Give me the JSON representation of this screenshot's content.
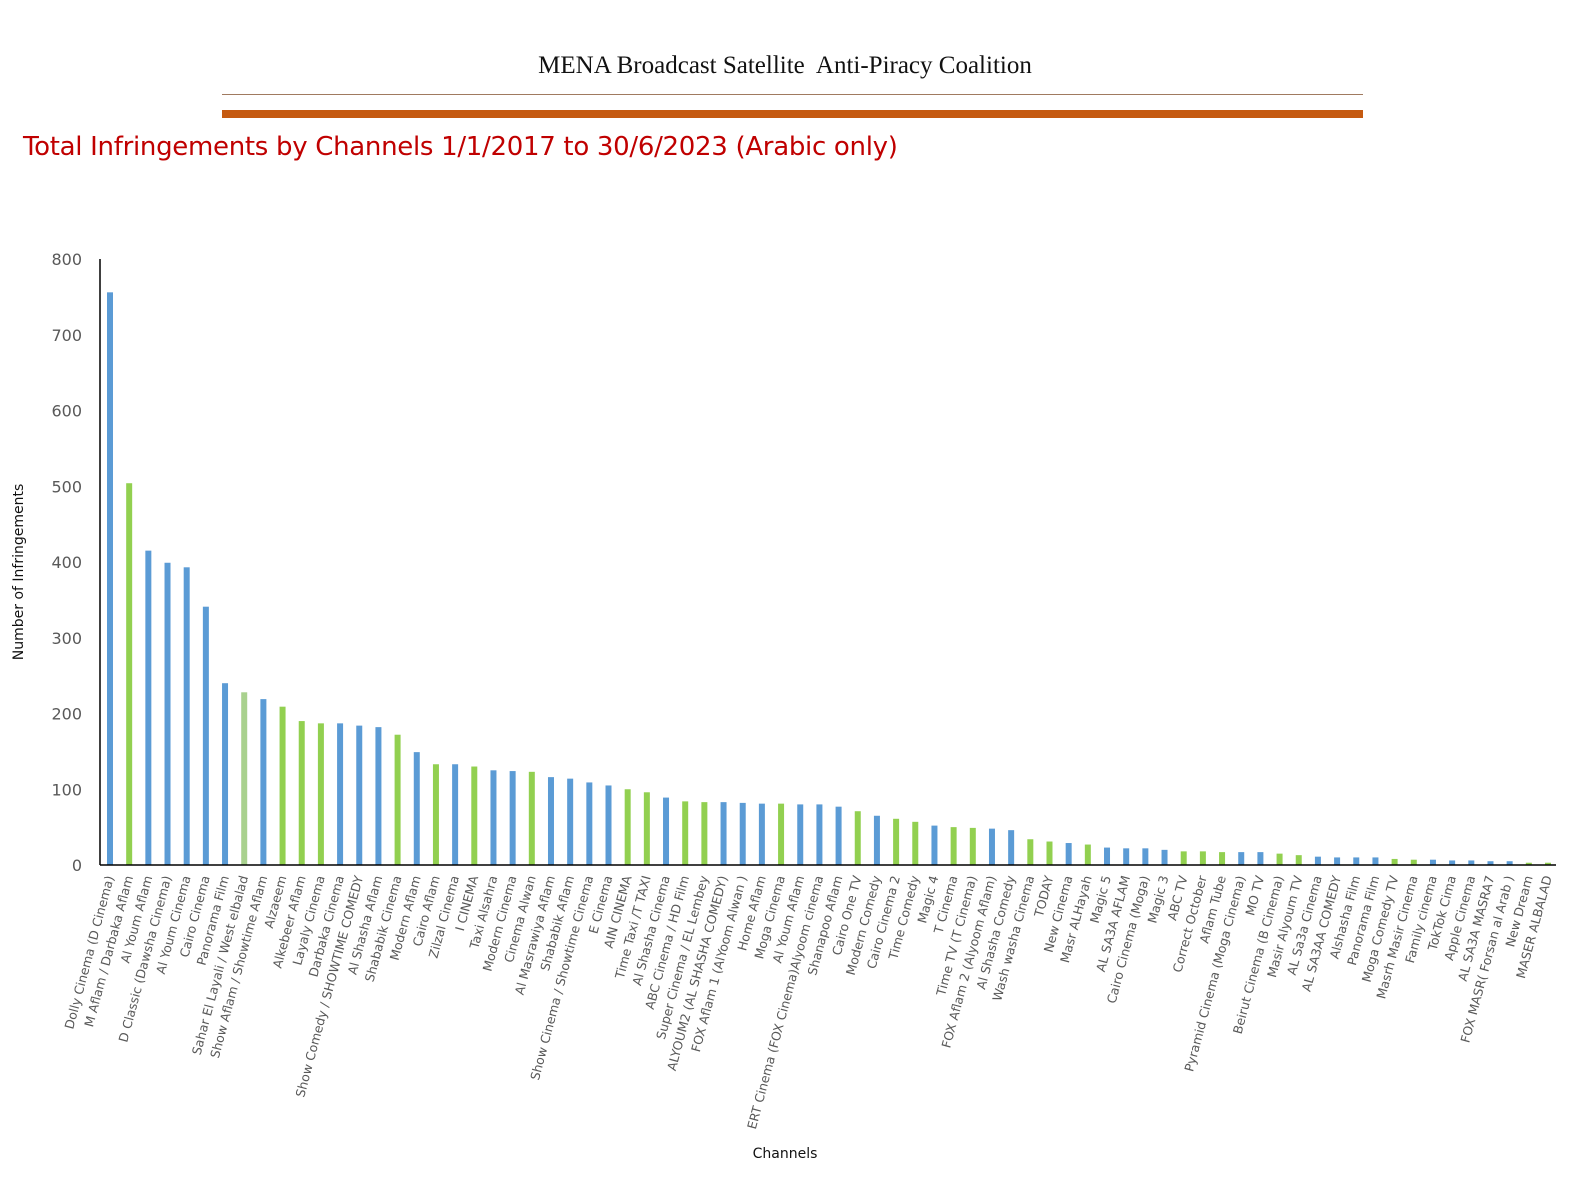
{
  "header": {
    "title": "MENA Broadcast Satellite  Anti-Piracy Coalition"
  },
  "chart_data": {
    "type": "bar",
    "title": "Total Infringements by Channels 1/1/2017 to 30/6/2023 (Arabic only)",
    "xlabel": "Channels",
    "ylabel": "Number of Infringements",
    "ylim": [
      0,
      800
    ],
    "yticks": [
      "0",
      "100",
      "200",
      "300",
      "400",
      "500",
      "600",
      "700",
      "800"
    ],
    "grid": false,
    "legend": "none",
    "palette": {
      "blue": "#5b9bd5",
      "green": "#92d050",
      "lightgreen": "#a9d18e"
    },
    "categories": [
      "Dolly Cinema (D Cinema)",
      "M Aflam  / Darbaka Aflam",
      "Al Youm Aflam",
      "D Classic (Dawsha Cinema)",
      "Al Youm Cinema",
      "Cairo Cinema",
      "Panorama Film",
      "Sahar El Layali / West elbalad",
      "Show Aflam / Showtime Aflam",
      "Alzaeem",
      "Alkebeer Aflam",
      "Layaly Cinema",
      "Darbaka Cinema",
      "Show Comedy / SHOWTIME COMEDY",
      "Al Shasha Aflam",
      "Shababik Cinema",
      "Modern Aflam",
      "Cairo Aflam",
      "Zilzal Cinema",
      "I CINEMA",
      "Taxi Alsahra",
      "Modern Cinema",
      "Cinema Alwan",
      "Al Masrawiya Aflam",
      "Shababik Aflam",
      "Show Cinema / Showtime Cinema",
      "E Cinema",
      "AIN CINEMA",
      "Time Taxi /T TAXI",
      "Al Shasha Cinema",
      "ABC Cinema / HD Film",
      "Super Cinema / EL Lembey",
      "ALYOUM2 (AL SHASHA COMEDY)",
      "FOX Aflam 1 (AlYoom Alwan )",
      "Home Aflam",
      "Moga Cinema",
      "Al Youm Aflam",
      "ERT Cinema (FOX Cinema)Alyoom cinema",
      "Shanapoo Aflam",
      "Cairo One TV",
      "Modern Comedy",
      "Cairo Cinema 2",
      "Time Comedy",
      "Magic 4",
      "T Cinema",
      "Time TV (T Cinema)",
      "FOX Aflam 2 (Alyoom Aflam)",
      "Al Shasha Comedy",
      "Wash washa Cinema",
      "TODAY",
      "New Cinema",
      "Masr ALHayah",
      "Magic 5",
      "AL SA3A AFLAM",
      "Cairo Cinema (Moga)",
      "Magic 3",
      "ABC TV",
      "Correct October",
      "Aflam Tube",
      "Pyramid Cinema (Moga Cinema)",
      "MO TV",
      "Beirut Cinema (B Cinema)",
      "Masir Alyoum TV",
      "AL Sa3a Cinema",
      "AL SA3AA COMEDY",
      "Alshasha Film",
      "Panorama Film",
      "Moga Comedy TV",
      "Masrh Masir Cinema",
      "Family cinema",
      "TokTok Cima",
      "Apple Cinema",
      "AL SA3A MASRA7",
      "FOX MASR( Forsan al Arab )",
      "New Dream",
      "MASER ALBALAD"
    ],
    "values": [
      756,
      504,
      415,
      399,
      393,
      341,
      240,
      228,
      219,
      209,
      190,
      187,
      187,
      184,
      182,
      172,
      149,
      133,
      133,
      130,
      125,
      124,
      123,
      116,
      114,
      109,
      105,
      100,
      96,
      89,
      84,
      83,
      83,
      82,
      81,
      81,
      80,
      80,
      77,
      71,
      65,
      61,
      57,
      52,
      50,
      49,
      48,
      46,
      34,
      31,
      29,
      27,
      23,
      22,
      22,
      20,
      18,
      18,
      17,
      17,
      17,
      15,
      13,
      11,
      10,
      10,
      10,
      8,
      7,
      7,
      6,
      6,
      5,
      5,
      3,
      3
    ],
    "bar_colors": [
      "blue",
      "green",
      "blue",
      "blue",
      "blue",
      "blue",
      "blue",
      "lightgreen",
      "blue",
      "green",
      "green",
      "green",
      "blue",
      "blue",
      "blue",
      "green",
      "blue",
      "green",
      "blue",
      "green",
      "blue",
      "blue",
      "green",
      "blue",
      "blue",
      "blue",
      "blue",
      "green",
      "green",
      "blue",
      "green",
      "green",
      "blue",
      "blue",
      "blue",
      "green",
      "blue",
      "blue",
      "blue",
      "green",
      "blue",
      "green",
      "green",
      "blue",
      "green",
      "green",
      "blue",
      "blue",
      "green",
      "green",
      "blue",
      "green",
      "blue",
      "blue",
      "blue",
      "blue",
      "green",
      "green",
      "green",
      "blue",
      "blue",
      "green",
      "green",
      "blue",
      "blue",
      "blue",
      "blue",
      "green",
      "green",
      "blue",
      "blue",
      "blue",
      "blue",
      "blue",
      "green",
      "green"
    ]
  }
}
